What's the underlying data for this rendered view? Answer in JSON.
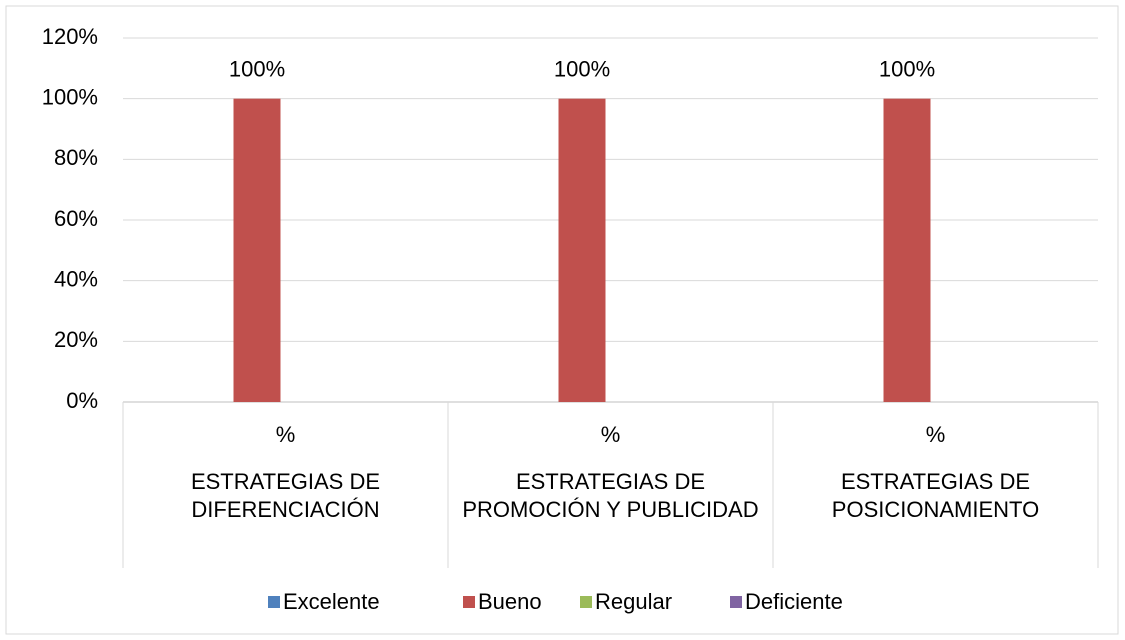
{
  "chart_data": {
    "type": "bar",
    "categories": [
      "%",
      "%",
      "%"
    ],
    "category_groups": [
      "ESTRATEGIAS DE DIFERENCIACIÓN",
      "ESTRATEGIAS DE PROMOCIÓN Y PUBLICIDAD",
      "ESTRATEGIAS DE POSICIONAMIENTO"
    ],
    "series": [
      {
        "name": "Excelente",
        "color": "#4f81bd",
        "values": [
          null,
          null,
          null
        ]
      },
      {
        "name": "Bueno",
        "color": "#c0504d",
        "values": [
          100,
          100,
          100
        ],
        "value_labels": [
          "100%",
          "100%",
          "100%"
        ]
      },
      {
        "name": "Regular",
        "color": "#9bbb59",
        "values": [
          null,
          null,
          null
        ]
      },
      {
        "name": "Deficiente",
        "color": "#8064a2",
        "values": [
          null,
          null,
          null
        ]
      }
    ],
    "ylim": [
      0,
      120
    ],
    "yticks": [
      {
        "value": 0,
        "label": "0%"
      },
      {
        "value": 20,
        "label": "20%"
      },
      {
        "value": 40,
        "label": "40%"
      },
      {
        "value": 60,
        "label": "60%"
      },
      {
        "value": 80,
        "label": "80%"
      },
      {
        "value": 100,
        "label": "100%"
      },
      {
        "value": 120,
        "label": "120%"
      }
    ],
    "grid": true,
    "legend": "bottom"
  }
}
